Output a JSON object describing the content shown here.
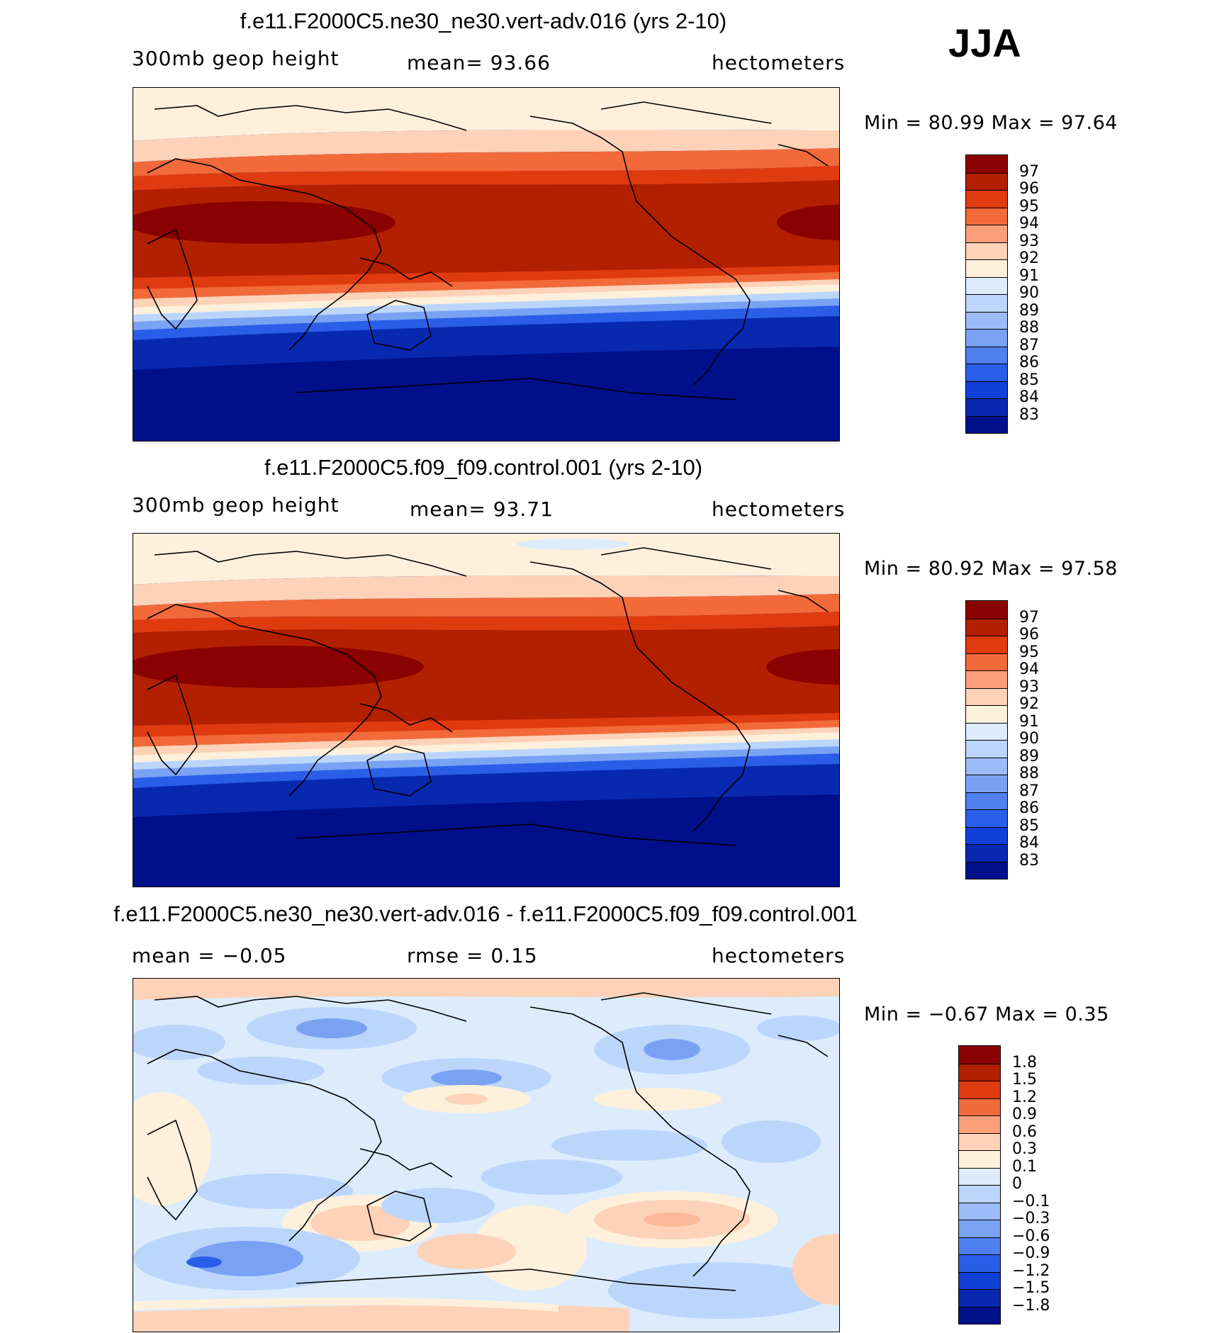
{
  "season": "JJA",
  "panels": [
    {
      "title": "f.e11.F2000C5.ne30_ne30.vert-adv.016 (yrs 2-10)",
      "left_label": "300mb geop height",
      "center_label": "mean=   93.66",
      "right_label": "hectometers",
      "minmax": "Min =   80.99  Max =   97.64"
    },
    {
      "title": "f.e11.F2000C5.f09_f09.control.001 (yrs 2-10)",
      "left_label": "300mb geop height",
      "center_label": "mean=   93.71",
      "right_label": "hectometers",
      "minmax": "Min =   80.92  Max =   97.58"
    },
    {
      "title": "f.e11.F2000C5.ne30_ne30.vert-adv.016 - f.e11.F2000C5.f09_f09.control.001",
      "left_label": "mean =   −0.05",
      "center_label": "rmse =     0.15",
      "right_label": "hectometers",
      "minmax": "Min =   −0.67  Max =     0.35"
    }
  ],
  "colorbars": {
    "height": {
      "colors": [
        "#8b0000",
        "#b22000",
        "#e03a10",
        "#f26a3a",
        "#f9a07a",
        "#fdd2b8",
        "#fff0dc",
        "#dcecfc",
        "#bcd6fb",
        "#9cbcf7",
        "#7aa2f3",
        "#507ff0",
        "#2a5ee8",
        "#1040d8",
        "#0828b0",
        "#00108a"
      ],
      "labels": [
        "97",
        "96",
        "95",
        "94",
        "93",
        "92",
        "91",
        "90",
        "89",
        "88",
        "87",
        "86",
        "85",
        "84",
        "83"
      ]
    },
    "diff": {
      "colors": [
        "#8b0000",
        "#b22000",
        "#e03a10",
        "#f26a3a",
        "#f9a07a",
        "#fdd2b8",
        "#fff0dc",
        "#dcecfc",
        "#bcd6fb",
        "#9cbcf7",
        "#7aa2f3",
        "#507ff0",
        "#2a5ee8",
        "#1040d8",
        "#0828b0",
        "#00108a"
      ],
      "labels": [
        "1.8",
        "1.5",
        "1.2",
        "0.9",
        "0.6",
        "0.3",
        "0.1",
        "0",
        "−0.1",
        "−0.3",
        "−0.6",
        "−0.9",
        "−1.2",
        "−1.5",
        "−1.8"
      ]
    }
  },
  "chart_data": [
    {
      "type": "heatmap",
      "title": "f.e11.F2000C5.ne30_ne30.vert-adv.016 (yrs 2-10)",
      "variable": "300mb geop height",
      "units": "hectometers",
      "mean": 93.66,
      "min": 80.99,
      "max": 97.64,
      "levels": [
        83,
        84,
        85,
        86,
        87,
        88,
        89,
        90,
        91,
        92,
        93,
        94,
        95,
        96,
        97
      ],
      "projection": "cylindrical equidistant, Pacific-centered"
    },
    {
      "type": "heatmap",
      "title": "f.e11.F2000C5.f09_f09.control.001 (yrs 2-10)",
      "variable": "300mb geop height",
      "units": "hectometers",
      "mean": 93.71,
      "min": 80.92,
      "max": 97.58,
      "levels": [
        83,
        84,
        85,
        86,
        87,
        88,
        89,
        90,
        91,
        92,
        93,
        94,
        95,
        96,
        97
      ],
      "projection": "cylindrical equidistant, Pacific-centered"
    },
    {
      "type": "heatmap",
      "title": "f.e11.F2000C5.ne30_ne30.vert-adv.016 - f.e11.F2000C5.f09_f09.control.001",
      "units": "hectometers",
      "mean": -0.05,
      "rmse": 0.15,
      "min": -0.67,
      "max": 0.35,
      "levels": [
        -1.8,
        -1.5,
        -1.2,
        -0.9,
        -0.6,
        -0.3,
        -0.1,
        0,
        0.1,
        0.3,
        0.6,
        0.9,
        1.2,
        1.5,
        1.8
      ]
    }
  ]
}
